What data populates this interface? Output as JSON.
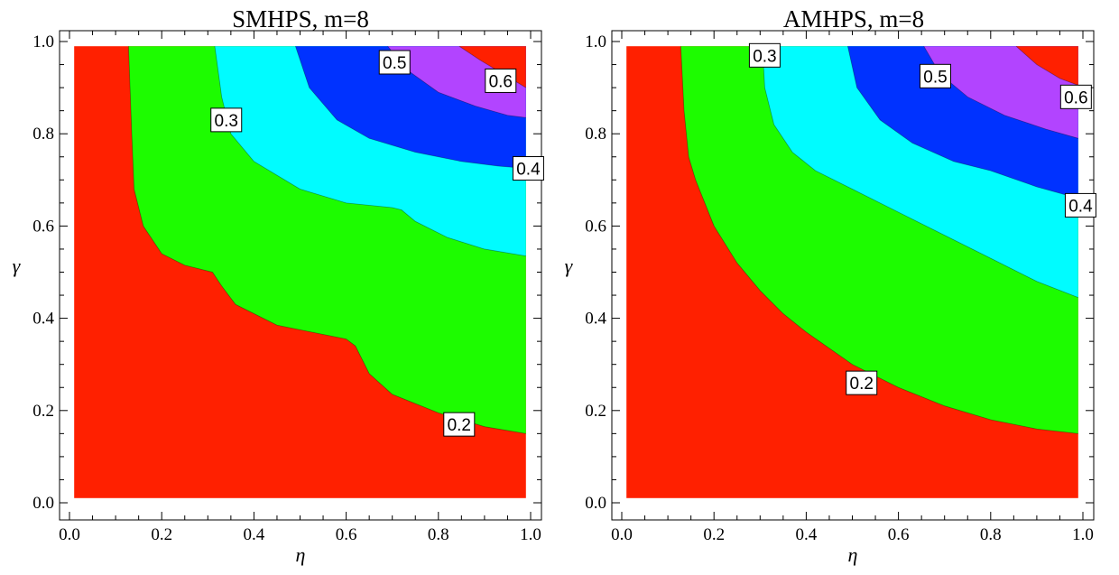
{
  "chart_data": [
    {
      "type": "contour",
      "title": "SMHPS, m=8",
      "xlabel": "η",
      "ylabel": "γ",
      "xlim": [
        0.0,
        1.0
      ],
      "ylim": [
        0.0,
        1.0
      ],
      "xticks": [
        "0.0",
        "0.2",
        "0.4",
        "0.6",
        "0.8",
        "1.0"
      ],
      "yticks": [
        "0.0",
        "0.2",
        "0.4",
        "0.6",
        "0.8",
        "1.0"
      ],
      "levels": [
        0.2,
        0.3,
        0.4,
        0.5,
        0.6
      ],
      "region_colors": [
        "#ff2000",
        "#1dfc00",
        "#00fcff",
        "#0032ff",
        "#b244ff",
        "#ff2000"
      ],
      "contours": [
        {
          "level": 0.2,
          "points": [
            [
              0.128,
              0.99
            ],
            [
              0.135,
              0.8
            ],
            [
              0.14,
              0.68
            ],
            [
              0.16,
              0.6
            ],
            [
              0.2,
              0.54
            ],
            [
              0.25,
              0.515
            ],
            [
              0.31,
              0.5
            ],
            [
              0.33,
              0.47
            ],
            [
              0.36,
              0.43
            ],
            [
              0.45,
              0.385
            ],
            [
              0.55,
              0.365
            ],
            [
              0.6,
              0.355
            ],
            [
              0.62,
              0.34
            ],
            [
              0.65,
              0.28
            ],
            [
              0.7,
              0.235
            ],
            [
              0.8,
              0.195
            ],
            [
              0.9,
              0.165
            ],
            [
              0.99,
              0.15
            ]
          ]
        },
        {
          "level": 0.3,
          "points": [
            [
              0.315,
              0.99
            ],
            [
              0.33,
              0.88
            ],
            [
              0.35,
              0.8
            ],
            [
              0.4,
              0.74
            ],
            [
              0.5,
              0.68
            ],
            [
              0.6,
              0.65
            ],
            [
              0.7,
              0.64
            ],
            [
              0.72,
              0.635
            ],
            [
              0.75,
              0.61
            ],
            [
              0.82,
              0.575
            ],
            [
              0.9,
              0.55
            ],
            [
              0.99,
              0.535
            ]
          ]
        },
        {
          "level": 0.4,
          "points": [
            [
              0.49,
              0.99
            ],
            [
              0.52,
              0.9
            ],
            [
              0.58,
              0.83
            ],
            [
              0.65,
              0.79
            ],
            [
              0.75,
              0.76
            ],
            [
              0.85,
              0.74
            ],
            [
              0.93,
              0.73
            ],
            [
              0.99,
              0.725
            ]
          ]
        },
        {
          "level": 0.5,
          "points": [
            [
              0.69,
              0.99
            ],
            [
              0.73,
              0.94
            ],
            [
              0.8,
              0.89
            ],
            [
              0.88,
              0.86
            ],
            [
              0.95,
              0.84
            ],
            [
              0.99,
              0.835
            ]
          ]
        },
        {
          "level": 0.6,
          "points": [
            [
              0.845,
              0.99
            ],
            [
              0.89,
              0.96
            ],
            [
              0.94,
              0.93
            ],
            [
              0.99,
              0.9
            ]
          ]
        }
      ],
      "labels": [
        {
          "text": "0.5",
          "eta": 0.705,
          "gamma": 0.955
        },
        {
          "text": "0.6",
          "eta": 0.935,
          "gamma": 0.915
        },
        {
          "text": "0.3",
          "eta": 0.34,
          "gamma": 0.83
        },
        {
          "text": "0.4",
          "eta": 0.995,
          "gamma": 0.725
        },
        {
          "text": "0.2",
          "eta": 0.845,
          "gamma": 0.17
        }
      ]
    },
    {
      "type": "contour",
      "title": "AMHPS, m=8",
      "xlabel": "η",
      "ylabel": "γ",
      "xlim": [
        0.0,
        1.0
      ],
      "ylim": [
        0.0,
        1.0
      ],
      "xticks": [
        "0.0",
        "0.2",
        "0.4",
        "0.6",
        "0.8",
        "1.0"
      ],
      "yticks": [
        "0.0",
        "0.2",
        "0.4",
        "0.6",
        "0.8",
        "1.0"
      ],
      "levels": [
        0.2,
        0.3,
        0.4,
        0.5,
        0.6
      ],
      "region_colors": [
        "#ff2000",
        "#1dfc00",
        "#00fcff",
        "#0032ff",
        "#b244ff",
        "#ff2000"
      ],
      "contours": [
        {
          "level": 0.2,
          "points": [
            [
              0.128,
              0.99
            ],
            [
              0.135,
              0.85
            ],
            [
              0.145,
              0.75
            ],
            [
              0.16,
              0.7
            ],
            [
              0.2,
              0.6
            ],
            [
              0.25,
              0.52
            ],
            [
              0.3,
              0.46
            ],
            [
              0.35,
              0.41
            ],
            [
              0.4,
              0.37
            ],
            [
              0.5,
              0.3
            ],
            [
              0.6,
              0.25
            ],
            [
              0.7,
              0.21
            ],
            [
              0.8,
              0.18
            ],
            [
              0.9,
              0.16
            ],
            [
              0.99,
              0.15
            ]
          ]
        },
        {
          "level": 0.3,
          "points": [
            [
              0.305,
              0.99
            ],
            [
              0.31,
              0.9
            ],
            [
              0.33,
              0.82
            ],
            [
              0.37,
              0.76
            ],
            [
              0.42,
              0.72
            ],
            [
              0.5,
              0.68
            ],
            [
              0.6,
              0.63
            ],
            [
              0.7,
              0.58
            ],
            [
              0.8,
              0.53
            ],
            [
              0.9,
              0.48
            ],
            [
              0.99,
              0.445
            ]
          ]
        },
        {
          "level": 0.4,
          "points": [
            [
              0.49,
              0.99
            ],
            [
              0.51,
              0.9
            ],
            [
              0.56,
              0.83
            ],
            [
              0.63,
              0.78
            ],
            [
              0.72,
              0.74
            ],
            [
              0.8,
              0.72
            ],
            [
              0.9,
              0.685
            ],
            [
              0.99,
              0.66
            ]
          ]
        },
        {
          "level": 0.5,
          "points": [
            [
              0.655,
              0.99
            ],
            [
              0.69,
              0.93
            ],
            [
              0.75,
              0.88
            ],
            [
              0.83,
              0.84
            ],
            [
              0.92,
              0.81
            ],
            [
              0.99,
              0.79
            ]
          ]
        },
        {
          "level": 0.6,
          "points": [
            [
              0.855,
              0.99
            ],
            [
              0.9,
              0.95
            ],
            [
              0.95,
              0.92
            ],
            [
              0.99,
              0.905
            ]
          ]
        }
      ],
      "labels": [
        {
          "text": "0.3",
          "eta": 0.31,
          "gamma": 0.97
        },
        {
          "text": "0.5",
          "eta": 0.68,
          "gamma": 0.925
        },
        {
          "text": "0.6",
          "eta": 0.985,
          "gamma": 0.88
        },
        {
          "text": "0.4",
          "eta": 0.995,
          "gamma": 0.645
        },
        {
          "text": "0.2",
          "eta": 0.52,
          "gamma": 0.26
        }
      ]
    }
  ]
}
